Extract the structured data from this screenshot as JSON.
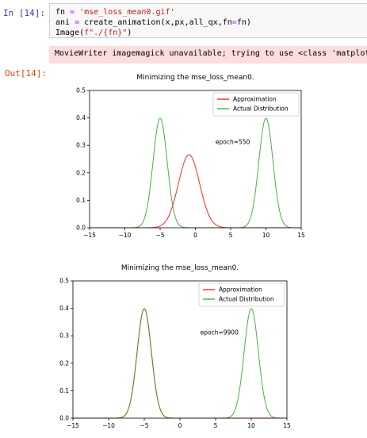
{
  "cell": {
    "in_prompt": "In  [14]:",
    "code_lines": [
      [
        {
          "t": "fn ",
          "c": ""
        },
        {
          "t": "=",
          "c": "op"
        },
        {
          "t": " ",
          "c": ""
        },
        {
          "t": "'mse_loss_mean0.gif'",
          "c": "str"
        }
      ],
      [
        {
          "t": "ani ",
          "c": ""
        },
        {
          "t": "=",
          "c": "op"
        },
        {
          "t": " create_animation(x,px,all_qx,fn",
          "c": ""
        },
        {
          "t": "=",
          "c": "op"
        },
        {
          "t": "fn)",
          "c": ""
        }
      ],
      [
        {
          "t": "Image(",
          "c": ""
        },
        {
          "t": "f\"./{fn}\"",
          "c": "str"
        },
        {
          "t": ")",
          "c": ""
        }
      ]
    ],
    "stderr": "MovieWriter imagemagick unavailable; trying to use <class 'matplotlib.animation.PillowWriter'> instead.",
    "out_prompt": "Out[14]:"
  },
  "chart_data": [
    {
      "type": "line",
      "title": "Minimizing the mse_loss_mean0.",
      "annotation": "epoch=550",
      "xlim": [
        -15,
        15
      ],
      "ylim": [
        0,
        0.5
      ],
      "x_ticks": [
        "−15",
        "−10",
        "−5",
        "0",
        "5",
        "10",
        "15"
      ],
      "y_ticks": [
        "0.0",
        "0.1",
        "0.2",
        "0.3",
        "0.4",
        "0.5"
      ],
      "legend_position": "top-right",
      "series": [
        {
          "name": "Approximation",
          "color": "#ff0000",
          "components": [
            {
              "mu": -0.9,
              "sigma": 1.5,
              "w": 1.0
            }
          ]
        },
        {
          "name": "Actual Distribution",
          "color": "#2ca02c",
          "components": [
            {
              "mu": -5,
              "sigma": 1,
              "w": 1.0
            },
            {
              "mu": 10,
              "sigma": 1,
              "w": 1.0
            }
          ]
        }
      ]
    },
    {
      "type": "line",
      "title": "Minimizing the mse_loss_mean0.",
      "annotation": "epoch=9900",
      "xlim": [
        -15,
        15
      ],
      "ylim": [
        0,
        0.5
      ],
      "x_ticks": [
        "−15",
        "−10",
        "−5",
        "0",
        "5",
        "10",
        "15"
      ],
      "y_ticks": [
        "0.0",
        "0.1",
        "0.2",
        "0.3",
        "0.4",
        "0.5"
      ],
      "legend_position": "top-right",
      "series": [
        {
          "name": "Approximation",
          "color": "#ff0000",
          "components": [
            {
              "mu": -5,
              "sigma": 1,
              "w": 1.0
            }
          ]
        },
        {
          "name": "Actual Distribution",
          "color": "#2ca02c",
          "components": [
            {
              "mu": -5,
              "sigma": 1,
              "w": 1.0
            },
            {
              "mu": 10,
              "sigma": 1,
              "w": 1.0
            }
          ]
        }
      ]
    }
  ]
}
